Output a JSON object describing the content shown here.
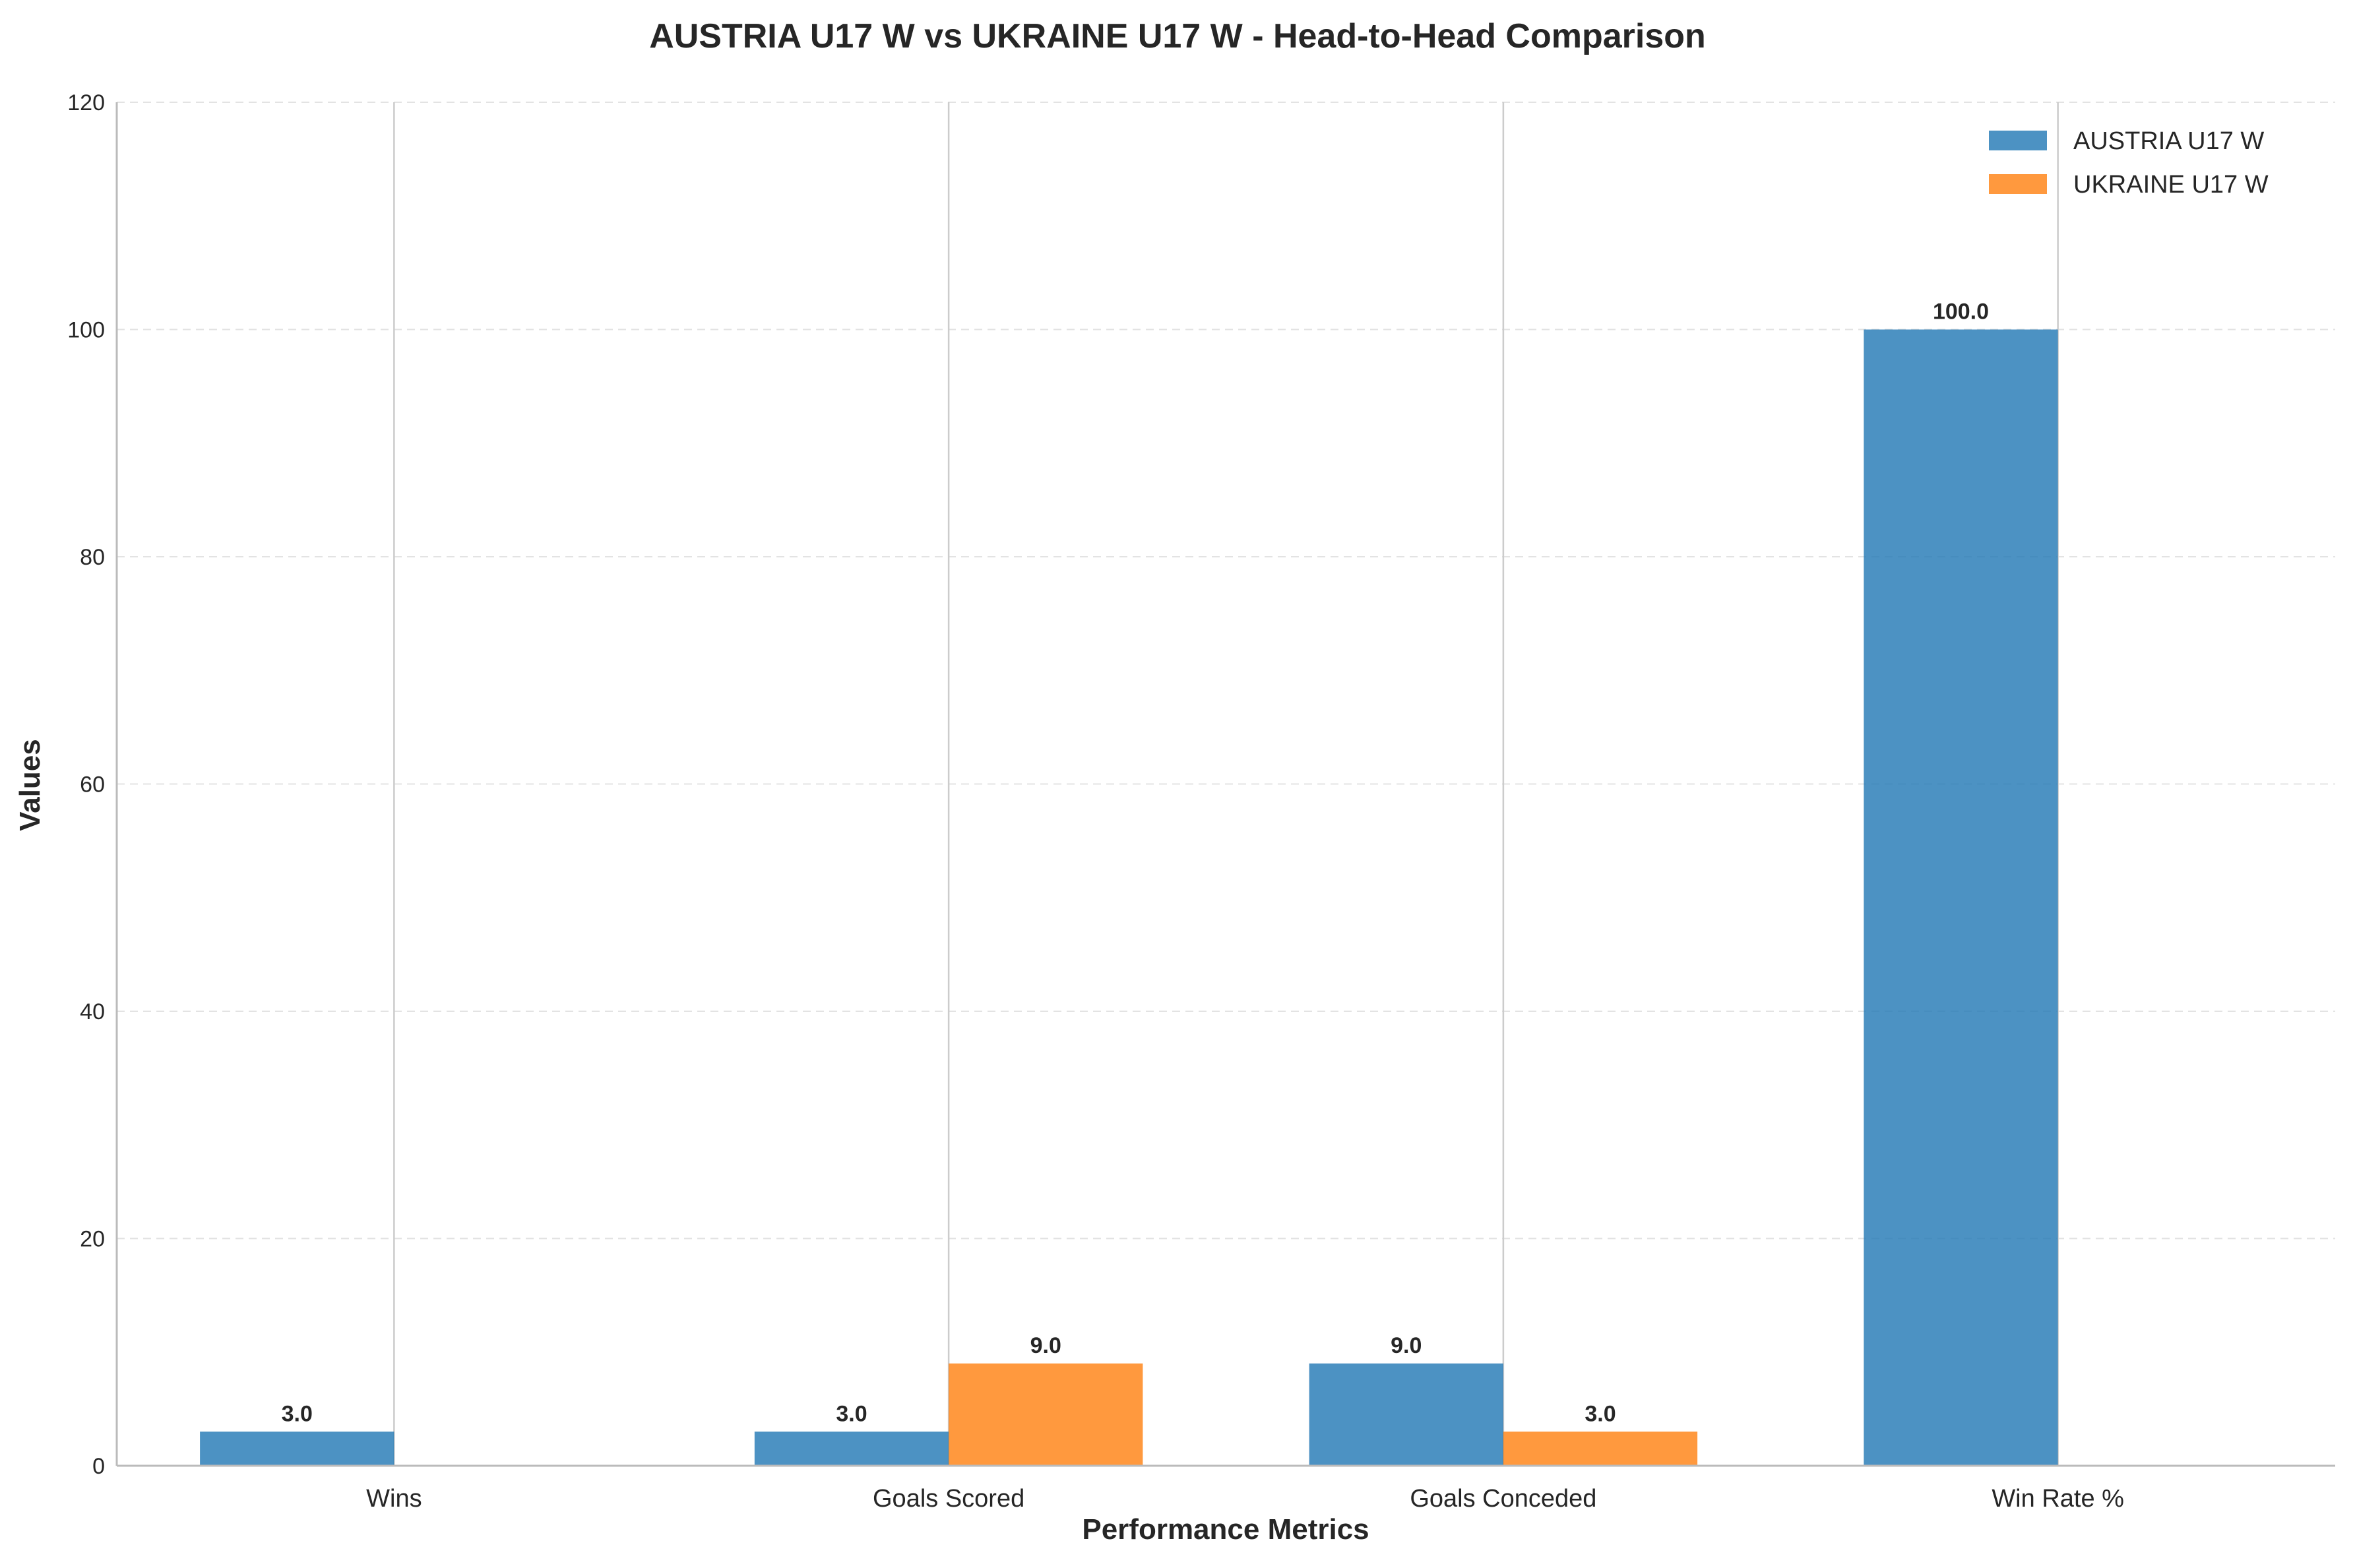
{
  "chart_data": {
    "type": "bar",
    "title": "AUSTRIA U17 W vs UKRAINE U17 W - Head-to-Head Comparison",
    "xlabel": "Performance Metrics",
    "ylabel": "Values",
    "categories": [
      "Wins",
      "Goals Scored",
      "Goals Conceded",
      "Win Rate %"
    ],
    "series": [
      {
        "name": "AUSTRIA U17 W",
        "values": [
          3.0,
          3.0,
          9.0,
          100.0
        ],
        "labels": [
          "3.0",
          "3.0",
          "9.0",
          "100.0"
        ],
        "color": "#1f77b4"
      },
      {
        "name": "UKRAINE U17 W",
        "values": [
          0,
          9.0,
          3.0,
          0
        ],
        "labels": [
          "",
          "9.0",
          "3.0",
          ""
        ],
        "color": "#ff7f0e"
      }
    ],
    "ylim": [
      0,
      120
    ],
    "yticks": [
      "0",
      "20",
      "40",
      "60",
      "80",
      "100",
      "120"
    ],
    "grid": "y-dashed",
    "legend_position": "top-right"
  }
}
